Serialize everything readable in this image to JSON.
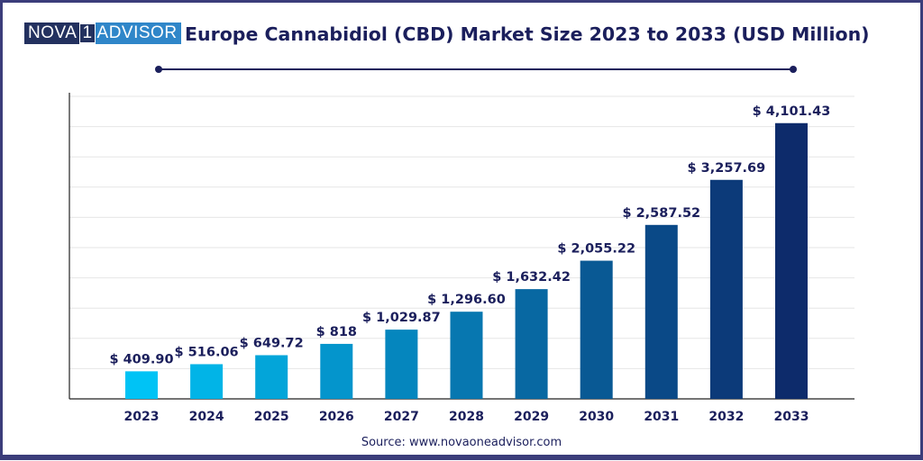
{
  "logo": {
    "left": "NOVA",
    "mark": "1",
    "right": "ADVISOR"
  },
  "source": "Source: www.novaoneadvisor.com",
  "colors": {
    "bar_start": "#00c3f5",
    "bar_end": "#0d2b6b",
    "text": "#1b1f5c",
    "frame": "#3b3d7a",
    "grid": "#e6e6e6"
  },
  "chart_data": {
    "type": "bar",
    "title": "Europe Cannabidiol (CBD) Market Size 2023 to 2033 (USD Million)",
    "categories": [
      "2023",
      "2024",
      "2025",
      "2026",
      "2027",
      "2028",
      "2029",
      "2030",
      "2031",
      "2032",
      "2033"
    ],
    "values": [
      409.9,
      516.06,
      649.72,
      818,
      1029.87,
      1296.6,
      1632.42,
      2055.22,
      2587.52,
      3257.69,
      4101.43
    ],
    "data_labels": [
      "$ 409.90",
      "$ 516.06",
      "$ 649.72",
      "$ 818",
      "$ 1,029.87",
      "$ 1,296.60",
      "$ 1,632.42",
      "$ 2,055.22",
      "$ 2,587.52",
      "$ 3,257.69",
      "$ 4,101.43"
    ],
    "xlabel": "",
    "ylabel": "",
    "ylim": [
      0,
      4500
    ],
    "grid": true,
    "legend": "none"
  }
}
